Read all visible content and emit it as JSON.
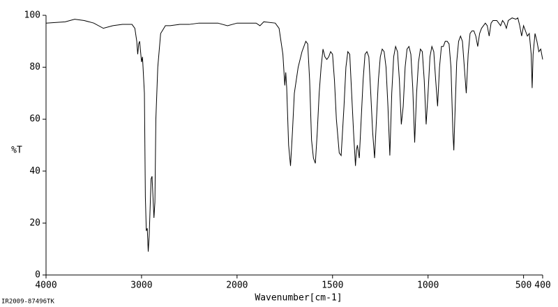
{
  "chart_data": {
    "type": "line",
    "y_label": "%T",
    "x_label": "Wavenumber[cm-1]",
    "footnote": "IR2009-87496TK",
    "color": "#000000",
    "xlim": [
      4000,
      400
    ],
    "x_scale_break": 2000,
    "x_scale_ratio": 2,
    "xticks": [
      4000,
      3000,
      2000,
      1500,
      1000,
      500,
      400
    ],
    "ylim": [
      0,
      100
    ],
    "yticks": [
      0,
      20,
      40,
      60,
      80,
      100
    ],
    "x": [
      4000,
      3800,
      3700,
      3600,
      3500,
      3400,
      3300,
      3200,
      3100,
      3070,
      3050,
      3040,
      3030,
      3020,
      3000,
      2990,
      2970,
      2960,
      2950,
      2940,
      2930,
      2920,
      2900,
      2890,
      2880,
      2870,
      2860,
      2850,
      2830,
      2800,
      2750,
      2700,
      2600,
      2500,
      2400,
      2300,
      2200,
      2100,
      2000,
      1950,
      1900,
      1880,
      1860,
      1800,
      1780,
      1760,
      1750,
      1745,
      1740,
      1730,
      1720,
      1710,
      1700,
      1680,
      1660,
      1640,
      1630,
      1620,
      1610,
      1600,
      1590,
      1580,
      1570,
      1560,
      1550,
      1540,
      1530,
      1520,
      1510,
      1500,
      1490,
      1480,
      1465,
      1455,
      1440,
      1430,
      1420,
      1410,
      1400,
      1390,
      1380,
      1375,
      1370,
      1360,
      1350,
      1340,
      1330,
      1320,
      1310,
      1300,
      1290,
      1280,
      1270,
      1260,
      1250,
      1240,
      1230,
      1220,
      1210,
      1200,
      1190,
      1180,
      1170,
      1160,
      1150,
      1140,
      1130,
      1120,
      1110,
      1100,
      1090,
      1080,
      1070,
      1060,
      1050,
      1040,
      1030,
      1020,
      1010,
      1000,
      990,
      980,
      970,
      960,
      950,
      940,
      930,
      920,
      910,
      900,
      890,
      880,
      870,
      865,
      860,
      850,
      840,
      830,
      820,
      810,
      800,
      790,
      780,
      770,
      760,
      750,
      740,
      730,
      720,
      700,
      690,
      680,
      670,
      660,
      640,
      620,
      610,
      600,
      590,
      580,
      560,
      540,
      530,
      520,
      510,
      500,
      490,
      480,
      470,
      460,
      455,
      450,
      440,
      430,
      420,
      410,
      400
    ],
    "values": [
      97,
      97.5,
      98.5,
      98,
      97,
      95,
      96,
      96.5,
      96.5,
      95,
      90,
      85,
      89,
      90,
      82,
      84,
      70,
      30,
      17,
      18,
      9,
      15,
      37,
      38,
      30,
      22,
      28,
      60,
      80,
      93,
      96,
      96,
      96.5,
      96.5,
      97,
      97,
      97,
      96,
      97,
      97,
      97,
      96,
      97.5,
      97,
      95,
      85,
      73,
      78,
      72,
      50,
      42,
      55,
      70,
      80,
      86,
      90,
      89,
      75,
      52,
      45,
      43,
      55,
      70,
      80,
      87,
      84,
      83,
      84,
      86,
      85,
      75,
      60,
      47,
      46,
      65,
      80,
      86,
      85,
      70,
      55,
      42,
      48,
      50,
      45,
      60,
      75,
      85,
      86,
      84,
      70,
      55,
      45,
      60,
      75,
      84,
      87,
      86,
      80,
      65,
      46,
      70,
      84,
      88,
      86,
      75,
      58,
      65,
      80,
      87,
      88,
      85,
      72,
      51,
      70,
      82,
      87,
      86,
      75,
      58,
      70,
      84,
      88,
      86,
      75,
      65,
      80,
      88,
      88,
      90,
      90,
      89,
      80,
      55,
      48,
      60,
      82,
      90,
      92,
      90,
      80,
      70,
      85,
      93,
      94,
      94,
      92,
      88,
      93,
      95,
      97,
      96,
      92,
      97,
      98,
      98,
      96,
      98,
      97,
      95,
      98,
      99,
      98.5,
      99,
      96,
      92,
      96,
      94,
      92,
      93,
      85,
      72,
      85,
      93,
      90,
      86,
      87,
      83
    ]
  }
}
